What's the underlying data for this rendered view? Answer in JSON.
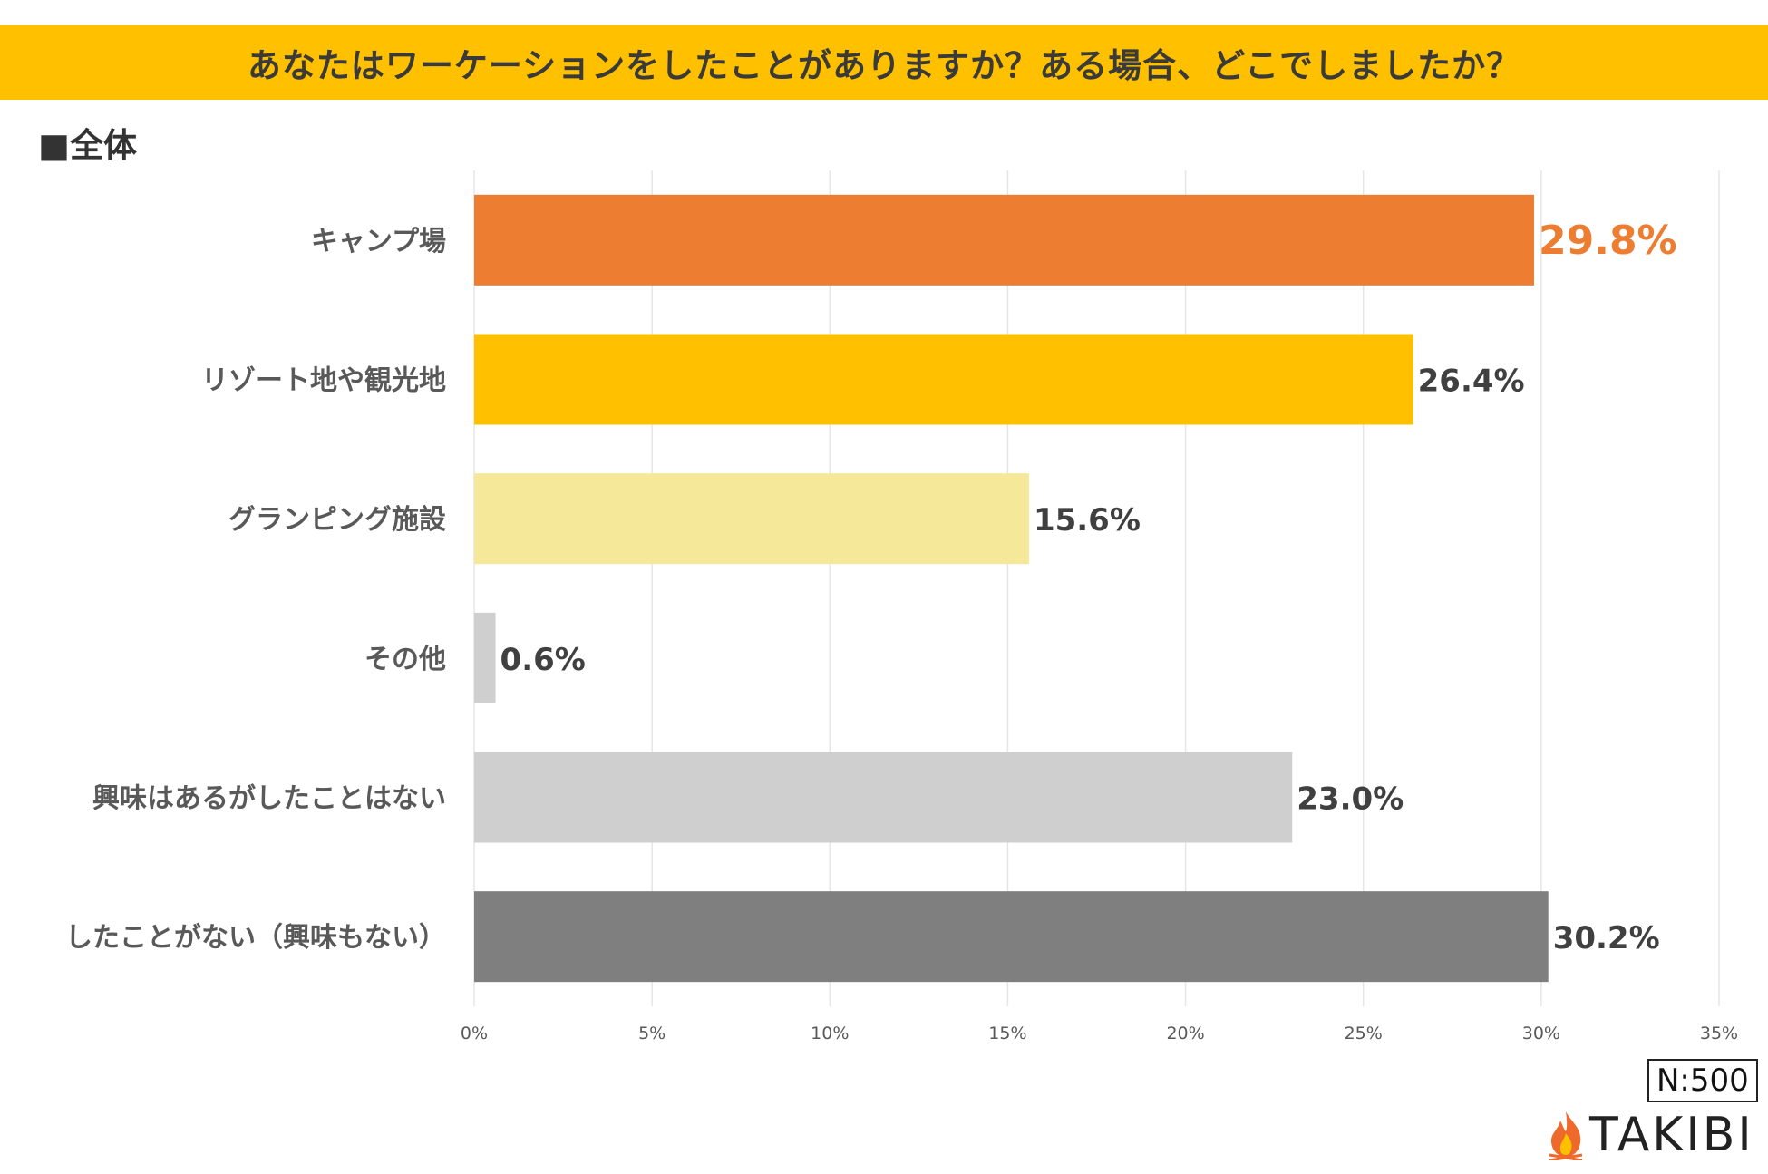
{
  "header": {
    "title": "あなたはワーケーションをしたことがありますか？ある場合、どこでしましたか？",
    "band_color": "#FFC000"
  },
  "section_label": "■全体",
  "footer": {
    "sample_size": "N:500",
    "brand": "TAKIBI"
  },
  "chart_data": {
    "type": "bar",
    "orientation": "horizontal",
    "title": "あなたはワーケーションをしたことがありますか？ある場合、どこでしましたか？",
    "categories": [
      "キャンプ場",
      "リゾート地や観光地",
      "グランピング施設",
      "その他",
      "興味はあるがしたことはない",
      "したことがない（興味もない）"
    ],
    "values": [
      29.8,
      26.4,
      15.6,
      0.6,
      23.0,
      30.2
    ],
    "data_labels": [
      "29.8%",
      "26.4%",
      "15.6%",
      "0.6%",
      "23.0%",
      "30.2%"
    ],
    "colors": [
      "#ED7D31",
      "#FFC000",
      "#F6E899",
      "#D0CFCF",
      "#D0CFCF",
      "#7F7F7F"
    ],
    "label_colors": [
      "#ED7D31",
      "#404040",
      "#404040",
      "#404040",
      "#404040",
      "#404040"
    ],
    "xlim": [
      0,
      35
    ],
    "xticks": [
      0,
      5,
      10,
      15,
      20,
      25,
      30,
      35
    ],
    "xtick_labels": [
      "0%",
      "5%",
      "10%",
      "15%",
      "20%",
      "25%",
      "30%",
      "35%"
    ],
    "grid": true,
    "xlabel": "",
    "ylabel": ""
  }
}
